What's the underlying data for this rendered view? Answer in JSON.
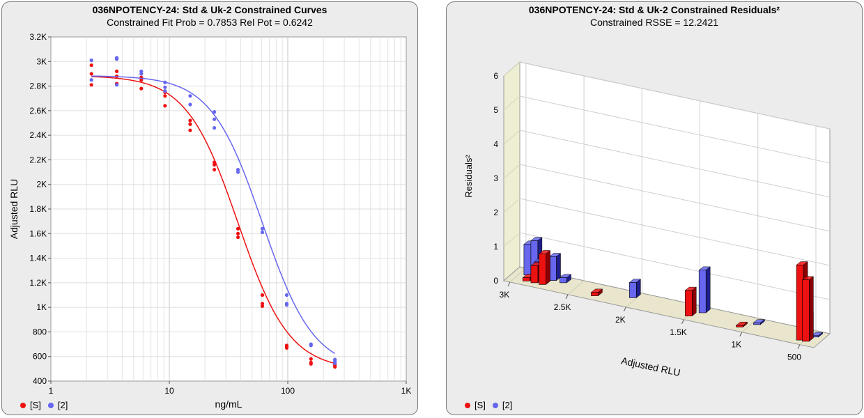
{
  "colors": {
    "std": "#ee1111",
    "uk": "#6666ee",
    "std_dark": "#8a0000",
    "uk_dark": "#20208a"
  },
  "chart_data": [
    {
      "type": "scatter",
      "title": "036NPOTENCY-24: Std & Uk-2  Constrained Curves",
      "subtitle": "Constrained Fit Prob = 0.7853  Rel Pot = 0.6242",
      "xlabel": "ng/mL",
      "ylabel": "Adjusted RLU",
      "xscale": "log",
      "xlim": [
        1,
        1000
      ],
      "ylim": [
        400,
        3200
      ],
      "x_ticks": [
        "1",
        "10",
        "100",
        "1K"
      ],
      "y_ticks": [
        "400",
        "600",
        "800",
        "1K",
        "1.2K",
        "1.4K",
        "1.6K",
        "1.8K",
        "2K",
        "2.2K",
        "2.4K",
        "2.6K",
        "2.8K",
        "3K",
        "3.2K"
      ],
      "grid": true,
      "legend": "bottom-left",
      "series": [
        {
          "name": "[S]",
          "points": [
            [
              2.2,
              2970
            ],
            [
              2.2,
              2900
            ],
            [
              2.2,
              2810
            ],
            [
              3.6,
              2920
            ],
            [
              3.6,
              2880
            ],
            [
              3.6,
              2820
            ],
            [
              5.8,
              2870
            ],
            [
              5.8,
              2850
            ],
            [
              5.8,
              2780
            ],
            [
              9.2,
              2750
            ],
            [
              9.2,
              2720
            ],
            [
              9.2,
              2640
            ],
            [
              15,
              2520
            ],
            [
              15,
              2490
            ],
            [
              15,
              2440
            ],
            [
              24,
              2180
            ],
            [
              24,
              2160
            ],
            [
              24,
              2120
            ],
            [
              38,
              1640
            ],
            [
              38,
              1600
            ],
            [
              38,
              1570
            ],
            [
              61,
              1100
            ],
            [
              61,
              1030
            ],
            [
              61,
              1010
            ],
            [
              98,
              690
            ],
            [
              98,
              680
            ],
            [
              98,
              670
            ],
            [
              157,
              580
            ],
            [
              157,
              550
            ],
            [
              157,
              540
            ],
            [
              250,
              540
            ],
            [
              250,
              530
            ],
            [
              250,
              515
            ]
          ],
          "curve": {
            "top": 2885,
            "bottom": 490,
            "ec50": 38,
            "slope": 2.0
          }
        },
        {
          "name": "[2]",
          "points": [
            [
              2.2,
              3010
            ],
            [
              2.2,
              2850
            ],
            [
              3.6,
              3030
            ],
            [
              3.6,
              3020
            ],
            [
              3.6,
              2810
            ],
            [
              5.8,
              2920
            ],
            [
              5.8,
              2900
            ],
            [
              9.2,
              2830
            ],
            [
              9.2,
              2790
            ],
            [
              9.2,
              2760
            ],
            [
              15,
              2720
            ],
            [
              15,
              2650
            ],
            [
              24,
              2590
            ],
            [
              24,
              2530
            ],
            [
              24,
              2460
            ],
            [
              38,
              2120
            ],
            [
              38,
              2100
            ],
            [
              61,
              1640
            ],
            [
              61,
              1610
            ],
            [
              98,
              1100
            ],
            [
              98,
              1030
            ],
            [
              98,
              1020
            ],
            [
              157,
              700
            ],
            [
              157,
              690
            ],
            [
              250,
              575
            ],
            [
              250,
              560
            ],
            [
              250,
              545
            ]
          ],
          "curve": {
            "top": 2885,
            "bottom": 490,
            "ec50": 61,
            "slope": 2.0
          }
        }
      ]
    },
    {
      "type": "bar",
      "title": "036NPOTENCY-24: Std & Uk-2  Constrained Residuals²",
      "subtitle": "Constrained RSSE = 12.2421",
      "xlabel": "Adjusted RLU",
      "ylabel": "Residuals²",
      "x_ticks": [
        "3K",
        "2.5K",
        "2K",
        "1.5K",
        "1K",
        "500"
      ],
      "x_tick_values": [
        3000,
        2500,
        2000,
        1500,
        1000,
        500
      ],
      "y_ticks": [
        "0",
        "1",
        "2",
        "3",
        "4",
        "5",
        "6"
      ],
      "ylim": [
        0,
        6
      ],
      "grid": true,
      "legend": "bottom-left",
      "series": [
        {
          "name": "[S]",
          "bars": [
            [
              2920,
              0.1
            ],
            [
              2850,
              0.5
            ],
            [
              2780,
              0.9
            ],
            [
              2330,
              0.1
            ],
            [
              1520,
              0.75
            ],
            [
              1080,
              0.05
            ],
            [
              560,
              2.2
            ],
            [
              510,
              1.8
            ]
          ]
        },
        {
          "name": "[2]",
          "bars": [
            [
              2960,
              0.9
            ],
            [
              2900,
              1.05
            ],
            [
              2870,
              0.45
            ],
            [
              2740,
              0.7
            ],
            [
              2650,
              0.15
            ],
            [
              2050,
              0.45
            ],
            [
              1450,
              1.25
            ],
            [
              980,
              0.05
            ],
            [
              560,
              0.6
            ],
            [
              480,
              0.02
            ]
          ]
        }
      ]
    }
  ]
}
